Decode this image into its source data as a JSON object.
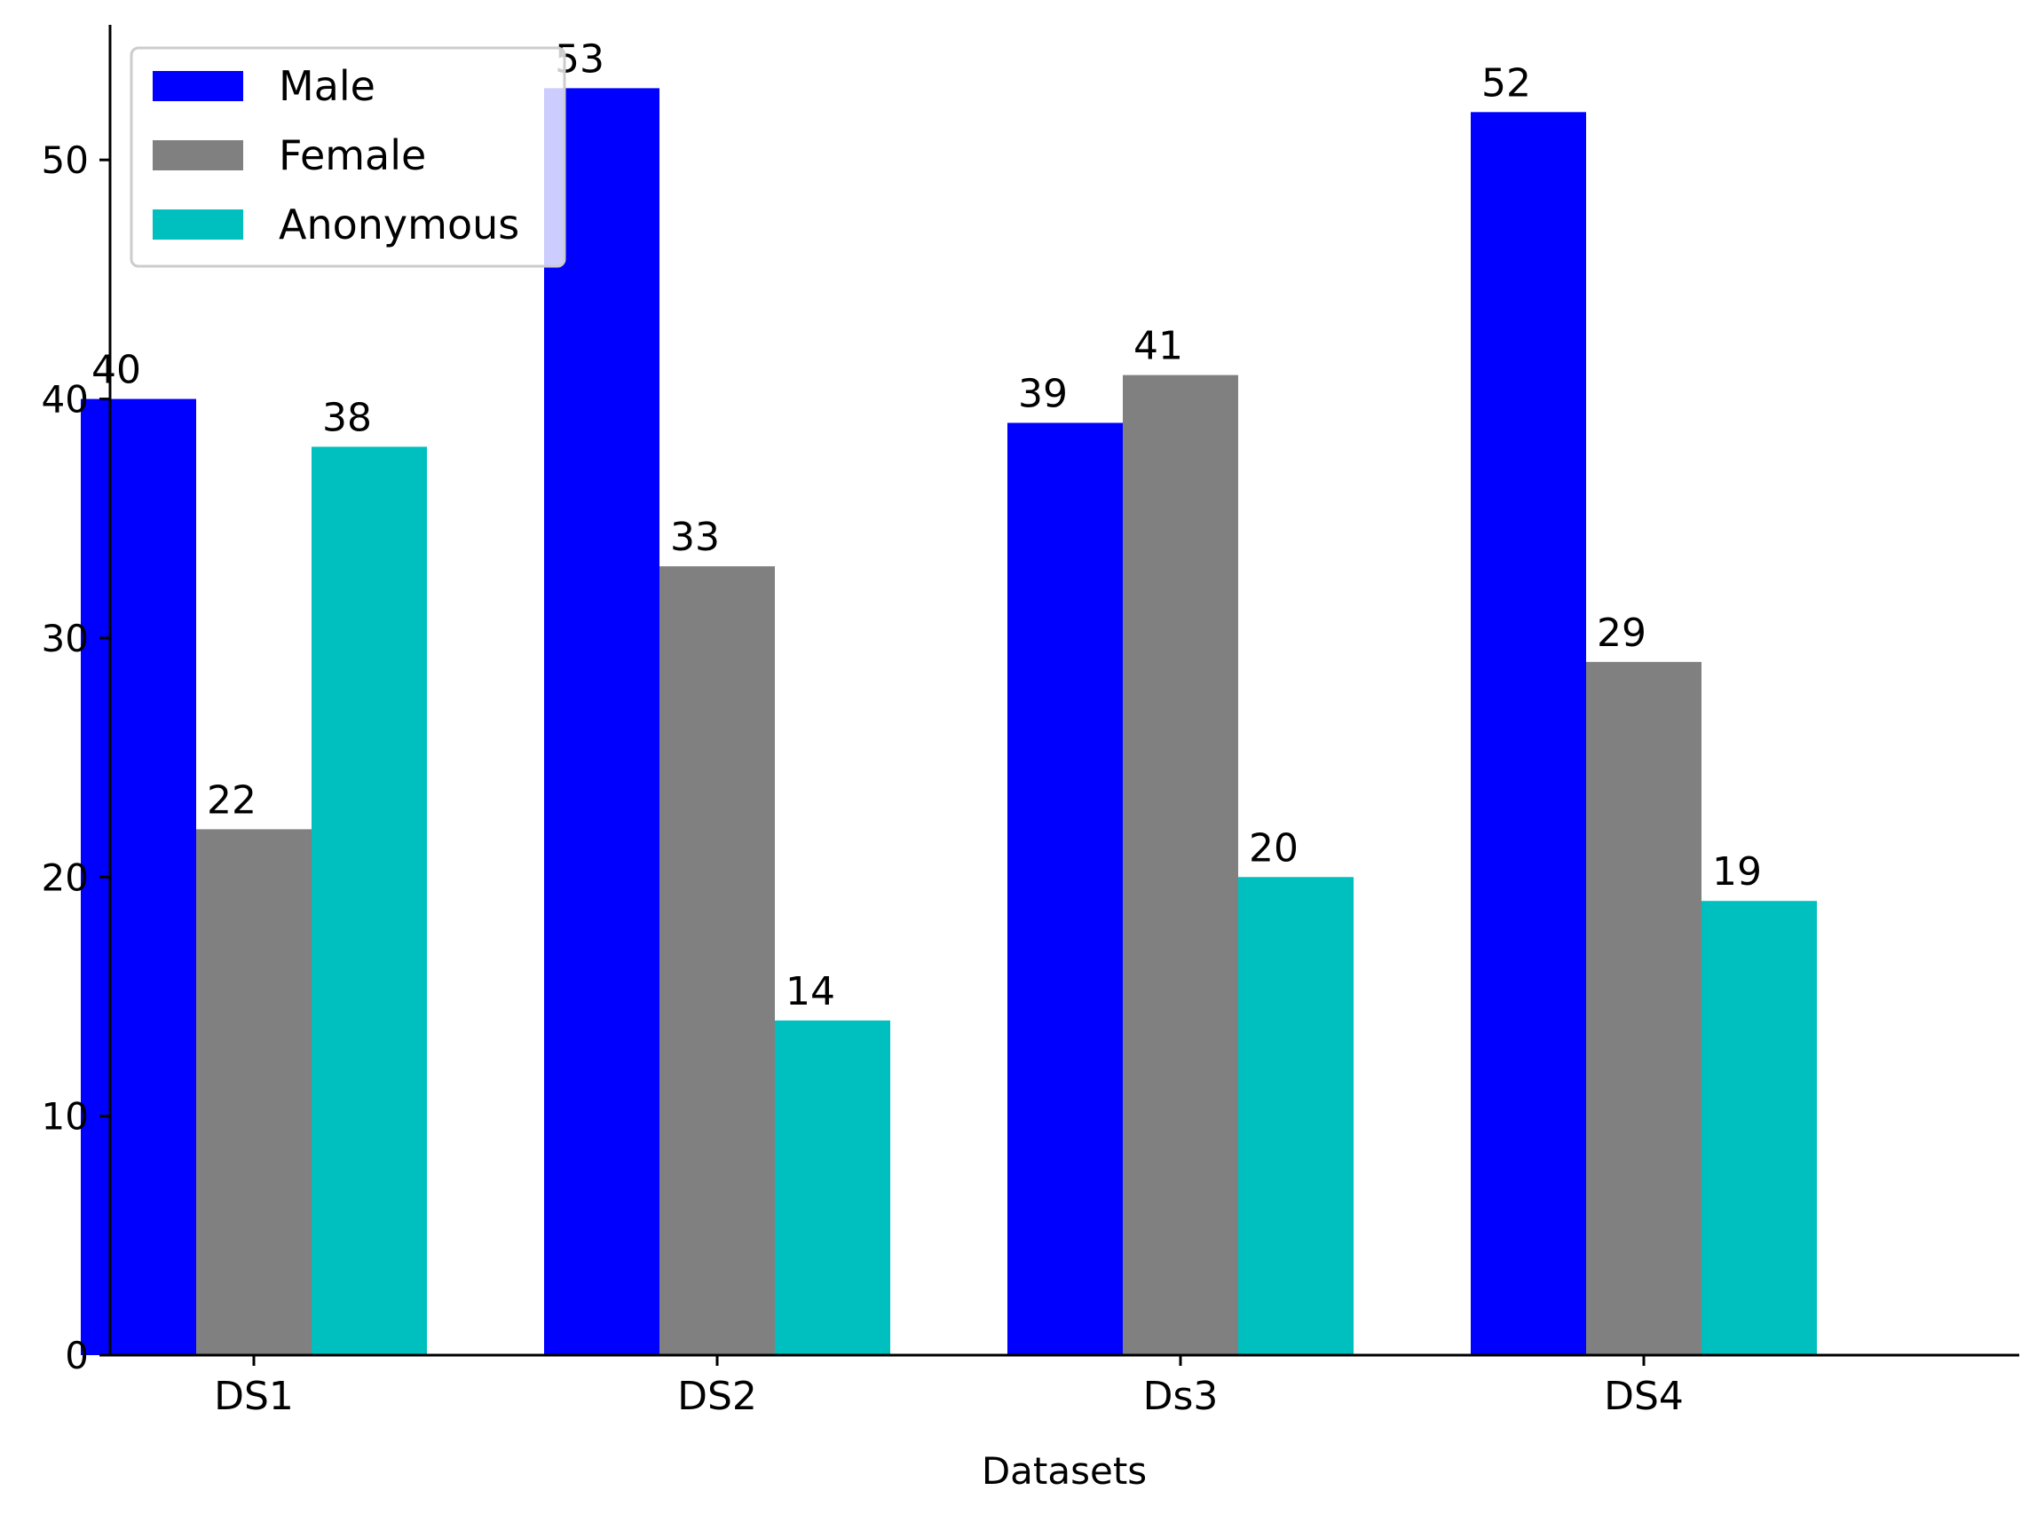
{
  "chart_data": {
    "type": "bar",
    "title": "",
    "xlabel": "Datasets",
    "ylabel": "",
    "categories": [
      "DS1",
      "DS2",
      "Ds3",
      "DS4"
    ],
    "series": [
      {
        "name": "Male",
        "color": "#0000ff",
        "values": [
          40,
          53,
          39,
          52
        ]
      },
      {
        "name": "Female",
        "color": "#808080",
        "values": [
          22,
          33,
          41,
          29
        ]
      },
      {
        "name": "Anonymous",
        "color": "#00bfbf",
        "values": [
          38,
          14,
          20,
          19
        ]
      }
    ],
    "ylim": [
      0,
      55.65
    ],
    "yticks": [
      0,
      10,
      20,
      30,
      40,
      50
    ],
    "legend_position": "top-left",
    "grid": false,
    "data_labels": true
  }
}
